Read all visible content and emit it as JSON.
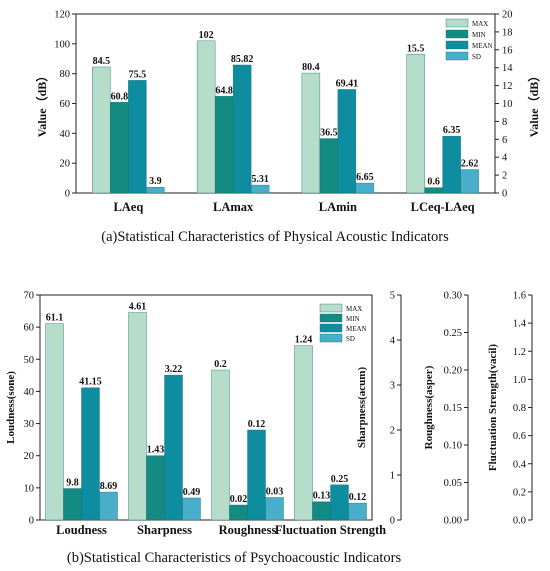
{
  "chart_data": [
    {
      "id": "physical",
      "type": "bar",
      "caption": "(a)Statistical Characteristics of Physical Acoustic Indicators",
      "categories": [
        "LAeq",
        "LAmax",
        "LAmin",
        "LCeq-LAeq"
      ],
      "legend_placement": "top-right",
      "ylabel": "Value（dB）",
      "ylim": [
        0,
        120
      ],
      "yticks": [
        0,
        20,
        40,
        60,
        80,
        100,
        120
      ],
      "y2label": "Value（dB）",
      "y2lim": [
        0,
        20
      ],
      "y2ticks": [
        0,
        2,
        4,
        6,
        8,
        10,
        12,
        14,
        16,
        18,
        20
      ],
      "series": [
        {
          "name": "MAX",
          "color": "#b5ddc9",
          "values": [
            84.5,
            102,
            80.4,
            15.5
          ],
          "axis": [
            "y",
            "y",
            "y",
            "y2"
          ]
        },
        {
          "name": "MIN",
          "color": "#138a82",
          "values": [
            60.8,
            64.8,
            36.5,
            0.6
          ],
          "axis": [
            "y",
            "y",
            "y",
            "y2"
          ]
        },
        {
          "name": "MEAN",
          "color": "#0e8ca0",
          "values": [
            75.5,
            85.82,
            69.41,
            6.35
          ],
          "axis": [
            "y",
            "y",
            "y",
            "y2"
          ]
        },
        {
          "name": "SD",
          "color": "#49aec9",
          "values": [
            3.9,
            5.31,
            6.65,
            2.62
          ],
          "axis": [
            "y",
            "y",
            "y",
            "y2"
          ]
        }
      ]
    },
    {
      "id": "psycho",
      "type": "bar",
      "caption": "(b)Statistical Characteristics of Psychoacoustic Indicators",
      "categories": [
        "Loudness",
        "Sharpness",
        "Roughness",
        "Fluctuation Strength"
      ],
      "legend_placement": "top-right",
      "ylabel": "Loudness(sone)",
      "ylim": [
        0,
        70
      ],
      "yticks": [
        0,
        10,
        20,
        30,
        40,
        50,
        60,
        70
      ],
      "extra_axes": [
        {
          "label": "Sharpness(acum)",
          "lim": [
            0,
            5
          ],
          "ticks": [
            "0",
            "1",
            "2",
            "3",
            "4",
            "5"
          ]
        },
        {
          "label": "Roughness(asper)",
          "lim": [
            0,
            0.3
          ],
          "ticks": [
            "0.00",
            "0.05",
            "0.10",
            "0.15",
            "0.20",
            "0.25",
            "0.30"
          ]
        },
        {
          "label": "Fluctuation Strength(vacil)",
          "lim": [
            0,
            1.6
          ],
          "ticks": [
            "0.0",
            "0.2",
            "0.4",
            "0.6",
            "0.8",
            "1.0",
            "1.2",
            "1.4",
            "1.6"
          ]
        }
      ],
      "series": [
        {
          "name": "MAX",
          "color": "#b5ddc9",
          "values": [
            61.1,
            4.61,
            0.2,
            1.24
          ]
        },
        {
          "name": "MIN",
          "color": "#138a82",
          "values": [
            9.8,
            1.43,
            0.02,
            0.13
          ]
        },
        {
          "name": "MEAN",
          "color": "#0e8ca0",
          "values": [
            41.15,
            3.22,
            0.12,
            0.25
          ]
        },
        {
          "name": "SD",
          "color": "#49aec9",
          "values": [
            8.69,
            0.49,
            0.03,
            0.12
          ]
        }
      ]
    }
  ]
}
